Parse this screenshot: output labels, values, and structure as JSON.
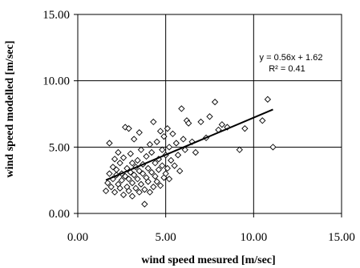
{
  "chart_data": {
    "type": "scatter",
    "title": "",
    "xlabel": "wind speed mesured [m/sec]",
    "ylabel": "wind speed modelled [m/sec]",
    "xlim": [
      0,
      15
    ],
    "ylim": [
      0,
      15
    ],
    "xticks": [
      "0.00",
      "5.00",
      "10.00",
      "15.00"
    ],
    "yticks": [
      "0.00",
      "5.00",
      "10.00",
      "15.00"
    ],
    "grid": true,
    "marker": "diamond",
    "annotations": [
      "y = 0.56x + 1.62",
      "R² = 0.41"
    ],
    "trendline": {
      "slope": 0.56,
      "intercept": 1.62,
      "x_range": [
        1.6,
        11.1
      ]
    },
    "points": [
      [
        1.6,
        1.7
      ],
      [
        1.7,
        2.3
      ],
      [
        1.8,
        3.0
      ],
      [
        1.8,
        5.3
      ],
      [
        1.9,
        2.0
      ],
      [
        2.0,
        2.6
      ],
      [
        2.0,
        3.5
      ],
      [
        2.1,
        1.6
      ],
      [
        2.1,
        4.1
      ],
      [
        2.2,
        2.9
      ],
      [
        2.2,
        3.3
      ],
      [
        2.3,
        2.2
      ],
      [
        2.3,
        4.6
      ],
      [
        2.4,
        1.9
      ],
      [
        2.4,
        3.8
      ],
      [
        2.5,
        2.5
      ],
      [
        2.5,
        3.0
      ],
      [
        2.6,
        1.4
      ],
      [
        2.6,
        4.2
      ],
      [
        2.7,
        2.8
      ],
      [
        2.7,
        6.5
      ],
      [
        2.8,
        2.0
      ],
      [
        2.8,
        3.4
      ],
      [
        2.9,
        1.7
      ],
      [
        2.9,
        2.6
      ],
      [
        2.9,
        6.4
      ],
      [
        3.0,
        3.1
      ],
      [
        3.0,
        4.5
      ],
      [
        3.1,
        1.3
      ],
      [
        3.1,
        2.3
      ],
      [
        3.1,
        3.8
      ],
      [
        3.2,
        2.9
      ],
      [
        3.2,
        5.6
      ],
      [
        3.3,
        1.9
      ],
      [
        3.3,
        3.5
      ],
      [
        3.4,
        2.6
      ],
      [
        3.4,
        4.0
      ],
      [
        3.5,
        1.6
      ],
      [
        3.5,
        3.2
      ],
      [
        3.5,
        6.1
      ],
      [
        3.6,
        2.2
      ],
      [
        3.6,
        4.8
      ],
      [
        3.7,
        3.0
      ],
      [
        3.7,
        3.7
      ],
      [
        3.8,
        1.8
      ],
      [
        3.8,
        0.7
      ],
      [
        3.9,
        2.7
      ],
      [
        3.9,
        4.3
      ],
      [
        4.0,
        2.4
      ],
      [
        4.0,
        3.4
      ],
      [
        4.1,
        5.2
      ],
      [
        4.1,
        1.6
      ],
      [
        4.2,
        3.1
      ],
      [
        4.2,
        4.6
      ],
      [
        4.3,
        2.0
      ],
      [
        4.3,
        6.9
      ],
      [
        4.4,
        2.8
      ],
      [
        4.4,
        3.8
      ],
      [
        4.5,
        2.4
      ],
      [
        4.5,
        5.4
      ],
      [
        4.6,
        3.3
      ],
      [
        4.6,
        4.1
      ],
      [
        4.7,
        2.1
      ],
      [
        4.7,
        6.2
      ],
      [
        4.8,
        3.6
      ],
      [
        4.8,
        4.8
      ],
      [
        4.9,
        2.7
      ],
      [
        4.9,
        5.8
      ],
      [
        5.0,
        3.0
      ],
      [
        5.0,
        4.4
      ],
      [
        5.1,
        6.4
      ],
      [
        5.1,
        3.4
      ],
      [
        5.2,
        2.6
      ],
      [
        5.2,
        5.0
      ],
      [
        5.3,
        4.0
      ],
      [
        5.4,
        6.0
      ],
      [
        5.5,
        3.6
      ],
      [
        5.6,
        5.3
      ],
      [
        5.7,
        4.4
      ],
      [
        5.8,
        3.2
      ],
      [
        5.9,
        7.9
      ],
      [
        6.0,
        5.6
      ],
      [
        6.1,
        4.8
      ],
      [
        6.2,
        7.0
      ],
      [
        6.3,
        6.8
      ],
      [
        6.5,
        5.4
      ],
      [
        6.7,
        4.6
      ],
      [
        7.0,
        6.9
      ],
      [
        7.3,
        5.7
      ],
      [
        7.5,
        7.3
      ],
      [
        7.8,
        8.4
      ],
      [
        8.0,
        6.3
      ],
      [
        8.2,
        6.7
      ],
      [
        8.5,
        6.5
      ],
      [
        9.2,
        4.8
      ],
      [
        9.5,
        6.4
      ],
      [
        10.5,
        7.0
      ],
      [
        10.8,
        8.6
      ],
      [
        11.1,
        5.0
      ]
    ]
  }
}
